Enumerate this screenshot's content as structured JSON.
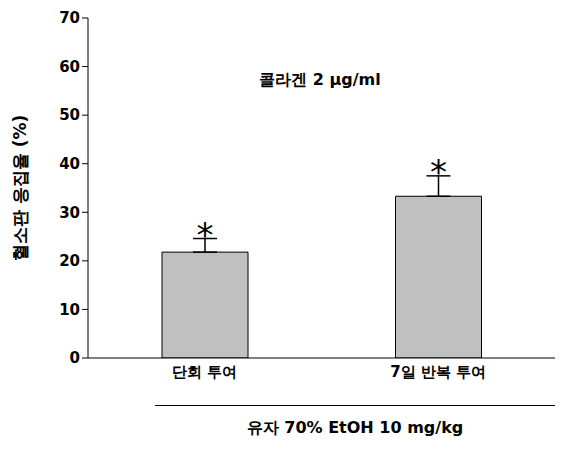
{
  "chart_data": {
    "type": "bar",
    "annotation": "콜라겐 2 μg/ml",
    "y_label": "혈소판 응집율 (%)",
    "x_group_label": "유자 70% EtOH 10 mg/kg",
    "categories": [
      "단회 투여",
      "7일 반복 투여"
    ],
    "values": [
      21.8,
      33.3
    ],
    "errors": [
      2.8,
      4.2
    ],
    "significance": [
      "*",
      "*"
    ],
    "color": "#c0c0c0",
    "ylim": [
      0,
      70
    ],
    "yticks": [
      0,
      10,
      20,
      30,
      40,
      50,
      60,
      70
    ],
    "grid": false
  }
}
